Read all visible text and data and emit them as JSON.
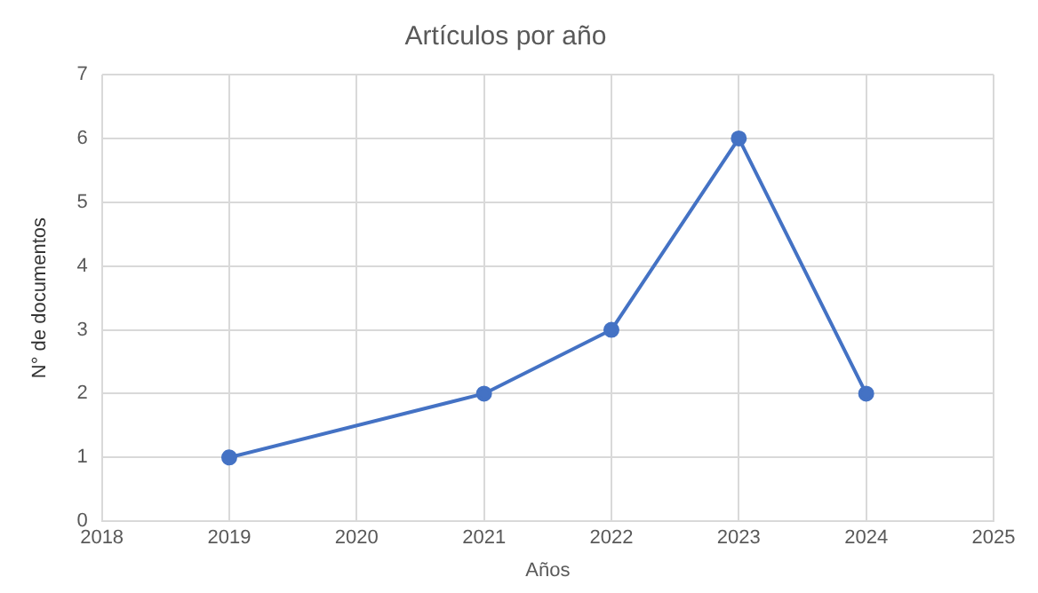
{
  "chart_data": {
    "type": "line",
    "title": "Artículos por año",
    "xlabel": "Años",
    "ylabel": "N° de documentos",
    "x": [
      2019,
      2021,
      2022,
      2023,
      2024
    ],
    "values": [
      1,
      2,
      3,
      6,
      2
    ],
    "color": "#4472c4",
    "xlim": [
      2018,
      2025
    ],
    "xticks": [
      2018,
      2019,
      2020,
      2021,
      2022,
      2023,
      2024,
      2025
    ],
    "ylim": [
      0,
      7
    ],
    "yticks": [
      0,
      1,
      2,
      3,
      4,
      5,
      6,
      7
    ],
    "grid": true,
    "marker": "circle",
    "line_style": "solid",
    "legend": false
  }
}
